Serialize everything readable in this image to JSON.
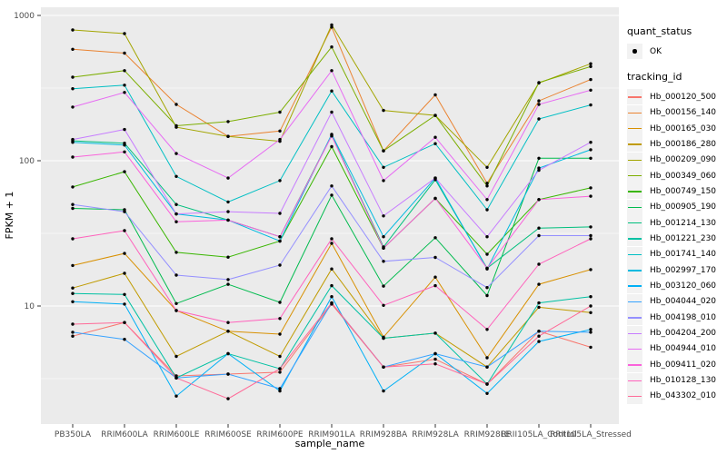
{
  "chart_data": {
    "type": "line",
    "title": "",
    "xlabel": "sample_name",
    "ylabel": "FPKM + 1",
    "yscale": "log",
    "yticks": [
      10,
      100,
      1000
    ],
    "minor_gridlines": [
      3.162,
      31.62,
      316.2
    ],
    "ylim": [
      1.5,
      1150
    ],
    "grid": true,
    "legend_position": "right",
    "point_marker": "black-dot",
    "categories": [
      "PB350LA",
      "RRIM600LA",
      "RRIM600LE",
      "RRIM600SE",
      "RRIM600PE",
      "RRIM901LA",
      "RRIM928BA",
      "RRIM928LA",
      "RRIM928LE",
      "RRII105LA_Control",
      "RRII105LA_Stressed"
    ],
    "legend": {
      "quant_status_title": "quant_status",
      "ok_label": "OK",
      "tracking_id_title": "tracking_id"
    },
    "colors": {
      "panel_bg": "#EBEBEB",
      "grid": "#FFFFFF",
      "key_bg": "#F2F2F2",
      "tick_text": "#4D4D4D",
      "axis_title": "#000000",
      "point": "#000000"
    },
    "series": [
      {
        "name": "Hb_000120_500",
        "color": "#F8766D",
        "values": [
          6.2,
          7.7,
          3.3,
          3.4,
          3.5,
          10.3,
          3.8,
          4.3,
          2.9,
          6.7,
          5.2
        ]
      },
      {
        "name": "Hb_000156_140",
        "color": "#EA8331",
        "values": [
          585,
          550,
          244,
          147,
          160,
          830,
          117,
          284,
          70,
          258,
          362
        ]
      },
      {
        "name": "Hb_000165_030",
        "color": "#D89000",
        "values": [
          19,
          23,
          9.3,
          6.7,
          6.4,
          27,
          6.1,
          15.8,
          4.4,
          14.1,
          17.8
        ]
      },
      {
        "name": "Hb_000186_280",
        "color": "#C09B00",
        "values": [
          13.3,
          16.8,
          4.5,
          6.7,
          4.5,
          18,
          6,
          6.5,
          3.8,
          9.8,
          9
        ]
      },
      {
        "name": "Hb_000209_090",
        "color": "#A3A500",
        "values": [
          794,
          750,
          170,
          147,
          136,
          860,
          222,
          205,
          90,
          343,
          465
        ]
      },
      {
        "name": "Hb_000349_060",
        "color": "#7CAE00",
        "values": [
          376,
          417,
          174,
          186,
          216,
          607,
          117,
          205,
          67,
          345,
          445
        ]
      },
      {
        "name": "Hb_000749_150",
        "color": "#39B600",
        "values": [
          66,
          84,
          23.4,
          21.7,
          28,
          125,
          25,
          55,
          22.7,
          54,
          65
        ]
      },
      {
        "name": "Hb_000905_190",
        "color": "#00BB4E",
        "values": [
          47,
          46,
          10.4,
          14.1,
          10.6,
          58,
          13.7,
          29.5,
          11.8,
          104,
          104
        ]
      },
      {
        "name": "Hb_001214_130",
        "color": "#00BF7D",
        "values": [
          137,
          132,
          50,
          39,
          30,
          150,
          25.5,
          74,
          18.2,
          34.4,
          35
        ]
      },
      {
        "name": "Hb_001221_230",
        "color": "#00C1A3",
        "values": [
          12.2,
          12,
          3.2,
          4.7,
          3.7,
          13.8,
          6,
          6.5,
          2.9,
          10.5,
          11.6
        ]
      },
      {
        "name": "Hb_001741_140",
        "color": "#00BFC4",
        "values": [
          313,
          331,
          78,
          52,
          73,
          302,
          90,
          131,
          46,
          194,
          242
        ]
      },
      {
        "name": "Hb_002997_170",
        "color": "#00BAE0",
        "values": [
          134,
          128,
          43,
          39,
          28,
          152,
          30,
          76,
          18,
          89,
          119
        ]
      },
      {
        "name": "Hb_003120_060",
        "color": "#00B0F6",
        "values": [
          10.7,
          10.3,
          2.4,
          4.7,
          2.6,
          11.6,
          2.6,
          4.7,
          2.5,
          5.7,
          6.9
        ]
      },
      {
        "name": "Hb_004044_020",
        "color": "#35A2FF",
        "values": [
          6.6,
          5.9,
          3.2,
          3.4,
          2.7,
          10.5,
          3.8,
          4.7,
          3.8,
          6.7,
          6.6
        ]
      },
      {
        "name": "Hb_004198_010",
        "color": "#9590FF",
        "values": [
          50,
          44.6,
          16.3,
          15.2,
          19.1,
          67,
          20.3,
          21.6,
          13.4,
          30.5,
          30.5
        ]
      },
      {
        "name": "Hb_004204_200",
        "color": "#C77CFF",
        "values": [
          140,
          164,
          43,
          44.6,
          43.4,
          216,
          41.7,
          76,
          30,
          86,
          134
        ]
      },
      {
        "name": "Hb_004944_010",
        "color": "#E76BF3",
        "values": [
          234,
          295,
          112,
          76,
          140,
          417,
          73,
          145,
          54,
          244,
          306
        ]
      },
      {
        "name": "Hb_009411_020",
        "color": "#FA62DB",
        "values": [
          106,
          115,
          38,
          39,
          30,
          148,
          25,
          55,
          18.2,
          54,
          57
        ]
      },
      {
        "name": "Hb_010128_130",
        "color": "#FF62BC",
        "values": [
          29,
          33,
          9.3,
          7.7,
          8.2,
          29,
          10.1,
          13.8,
          6.9,
          19.4,
          29
        ]
      },
      {
        "name": "Hb_043302_010",
        "color": "#FF6A98",
        "values": [
          7.5,
          7.7,
          3.2,
          2.3,
          3.7,
          10.5,
          3.8,
          4.0,
          2.9,
          6.2,
          10
        ]
      }
    ]
  }
}
